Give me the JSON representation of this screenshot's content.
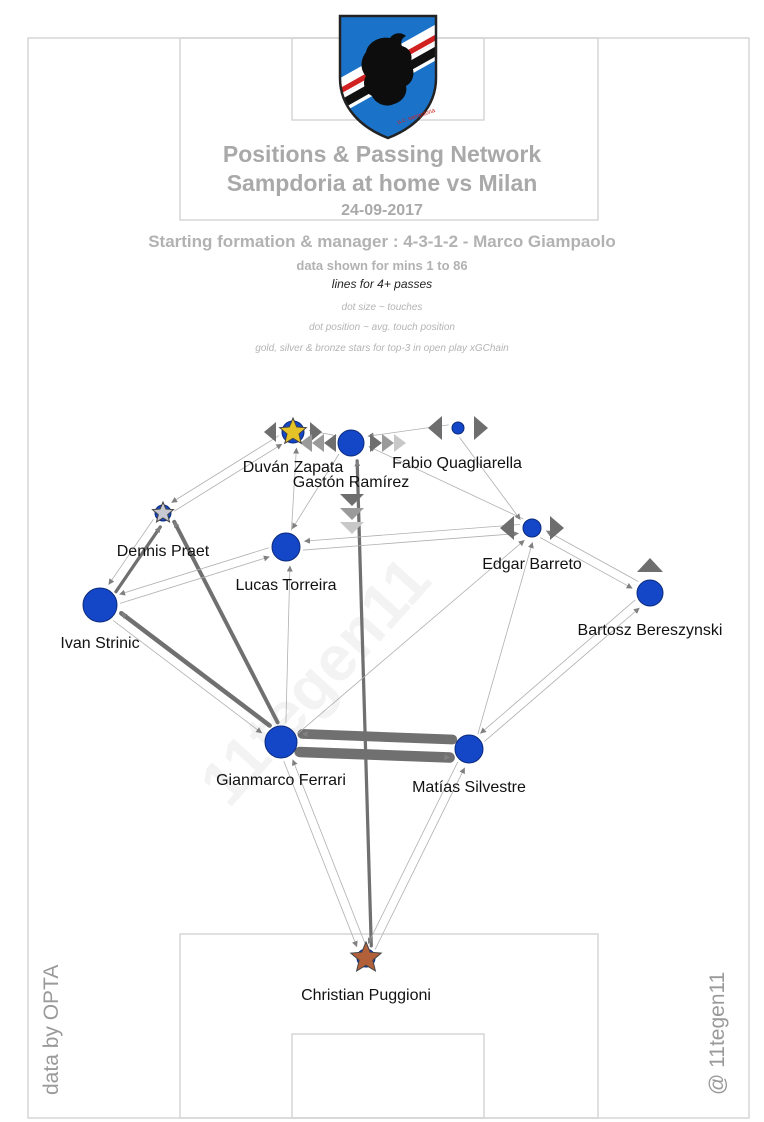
{
  "header": {
    "title_line1": "Positions & Passing Network",
    "title_line2": "Sampdoria at home vs Milan",
    "date": "24-09-2017",
    "formation": "Starting formation & manager : 4-3-1-2 - Marco Giampaolo",
    "minutes": "data shown for mins 1 to 86",
    "lines_note": "lines for 4+ passes",
    "legend_size": "dot size ~ touches",
    "legend_position": "dot position ~ avg. touch position",
    "legend_stars": "gold, silver & bronze stars for top-3 in open play xGChain"
  },
  "credits": {
    "data_source": "data by OPTA",
    "author": "@ 11tegen11",
    "watermark": "11tegen11"
  },
  "logo": {
    "name": "u.c. sampdoria",
    "colors": [
      "#1a73c9",
      "#ffffff",
      "#111111",
      "#d12020"
    ]
  },
  "colors": {
    "node": "#1446c8",
    "node_outline": "#0b2a7a",
    "gold_star": "#e6c229",
    "silver_star": "#c8c8d2",
    "bronze_star": "#b2603a",
    "line": "#808080",
    "sub_marker": "#6e6e6e"
  },
  "players": [
    {
      "id": "zapata",
      "name": "Duván Zapata",
      "star": "gold"
    },
    {
      "id": "ramirez",
      "name": "Gastón Ramírez",
      "star": null
    },
    {
      "id": "quagliarella",
      "name": "Fabio Quagliarella",
      "star": null
    },
    {
      "id": "praet",
      "name": "Dennis Praet",
      "star": "silver"
    },
    {
      "id": "torreira",
      "name": "Lucas Torreira",
      "star": null
    },
    {
      "id": "barreto",
      "name": "Edgar Barreto",
      "star": null
    },
    {
      "id": "strinic",
      "name": "Ivan Strinic",
      "star": null
    },
    {
      "id": "bereszynski",
      "name": "Bartosz Bereszynski",
      "star": null
    },
    {
      "id": "ferrari",
      "name": "Gianmarco Ferrari",
      "star": null
    },
    {
      "id": "silvestre",
      "name": "Matías Silvestre",
      "star": null
    },
    {
      "id": "puggioni",
      "name": "Christian Puggioni",
      "star": "bronze"
    }
  ],
  "passes": [
    {
      "from": "ferrari",
      "to": "silvestre",
      "count": 14
    },
    {
      "from": "silvestre",
      "to": "ferrari",
      "count": 13
    },
    {
      "from": "ferrari",
      "to": "strinic",
      "count": 7
    },
    {
      "from": "ferrari",
      "to": "praet",
      "count": 6
    },
    {
      "from": "puggioni",
      "to": "ramirez",
      "count": 5
    },
    {
      "from": "strinic",
      "to": "praet",
      "count": 5
    },
    {
      "from": "praet",
      "to": "strinic",
      "count": 4
    },
    {
      "from": "torreira",
      "to": "strinic",
      "count": 4
    },
    {
      "from": "strinic",
      "to": "torreira",
      "count": 4
    },
    {
      "from": "bereszynski",
      "to": "barreto",
      "count": 4
    },
    {
      "from": "barreto",
      "to": "bereszynski",
      "count": 4
    },
    {
      "from": "silvestre",
      "to": "bereszynski",
      "count": 4
    },
    {
      "from": "barreto",
      "to": "ramirez",
      "count": 4
    },
    {
      "from": "torreira",
      "to": "zapata",
      "count": 4
    },
    {
      "from": "praet",
      "to": "zapata",
      "count": 4
    },
    {
      "from": "zapata",
      "to": "praet",
      "count": 4
    },
    {
      "from": "quagliarella",
      "to": "barreto",
      "count": 4
    },
    {
      "from": "ramirez",
      "to": "torreira",
      "count": 4
    },
    {
      "from": "barreto",
      "to": "torreira",
      "count": 4
    },
    {
      "from": "torreira",
      "to": "barreto",
      "count": 4
    },
    {
      "from": "bereszynski",
      "to": "silvestre",
      "count": 4
    },
    {
      "from": "silvestre",
      "to": "barreto",
      "count": 4
    },
    {
      "from": "ferrari",
      "to": "torreira",
      "count": 4
    },
    {
      "from": "strinic",
      "to": "ferrari",
      "count": 4
    },
    {
      "from": "puggioni",
      "to": "ferrari",
      "count": 4
    },
    {
      "from": "ferrari",
      "to": "puggioni",
      "count": 4
    },
    {
      "from": "puggioni",
      "to": "silvestre",
      "count": 4
    },
    {
      "from": "silvestre",
      "to": "puggioni",
      "count": 4
    },
    {
      "from": "ferrari",
      "to": "barreto",
      "count": 4
    },
    {
      "from": "ramirez",
      "to": "zapata",
      "count": 4
    },
    {
      "from": "quagliarella",
      "to": "ramirez",
      "count": 4
    }
  ]
}
